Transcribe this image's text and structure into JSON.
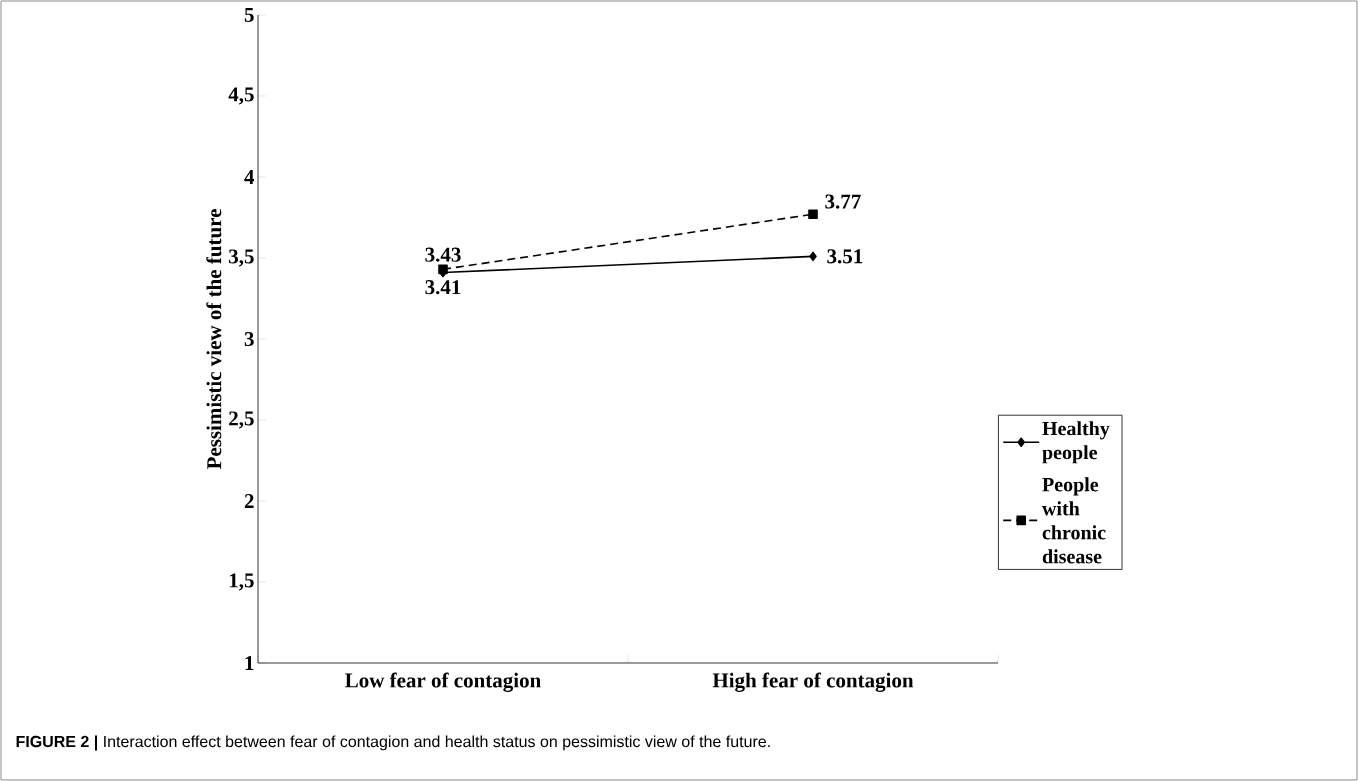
{
  "chart_data": {
    "type": "line",
    "categories": [
      "Low fear of contagion",
      "High fear of contagion"
    ],
    "series": [
      {
        "name": "Healthy people",
        "color": "#000000",
        "values": [
          3.41,
          3.51
        ],
        "marker": "diamond",
        "line_style": "solid"
      },
      {
        "name": "People with chronic disease",
        "color": "#000000",
        "values": [
          3.43,
          3.77
        ],
        "marker": "square",
        "line_style": "dashed"
      }
    ],
    "ylabel": "Pessimistic view of the future",
    "ylim": [
      1,
      5
    ],
    "yticks": [
      1,
      {
        "value": 1.5,
        "label": "1,5"
      },
      2,
      {
        "value": 2.5,
        "label": "2,5"
      },
      3,
      {
        "value": 3.5,
        "label": "3,5"
      },
      4,
      {
        "value": 4.5,
        "label": "4,5"
      },
      5
    ],
    "data_labels": true,
    "legend": "right",
    "grid": false,
    "annotations": [
      "**FIGURE 2 |** Interaction effect between fear of contagion and health status on pessimistic view of the future."
    ]
  }
}
